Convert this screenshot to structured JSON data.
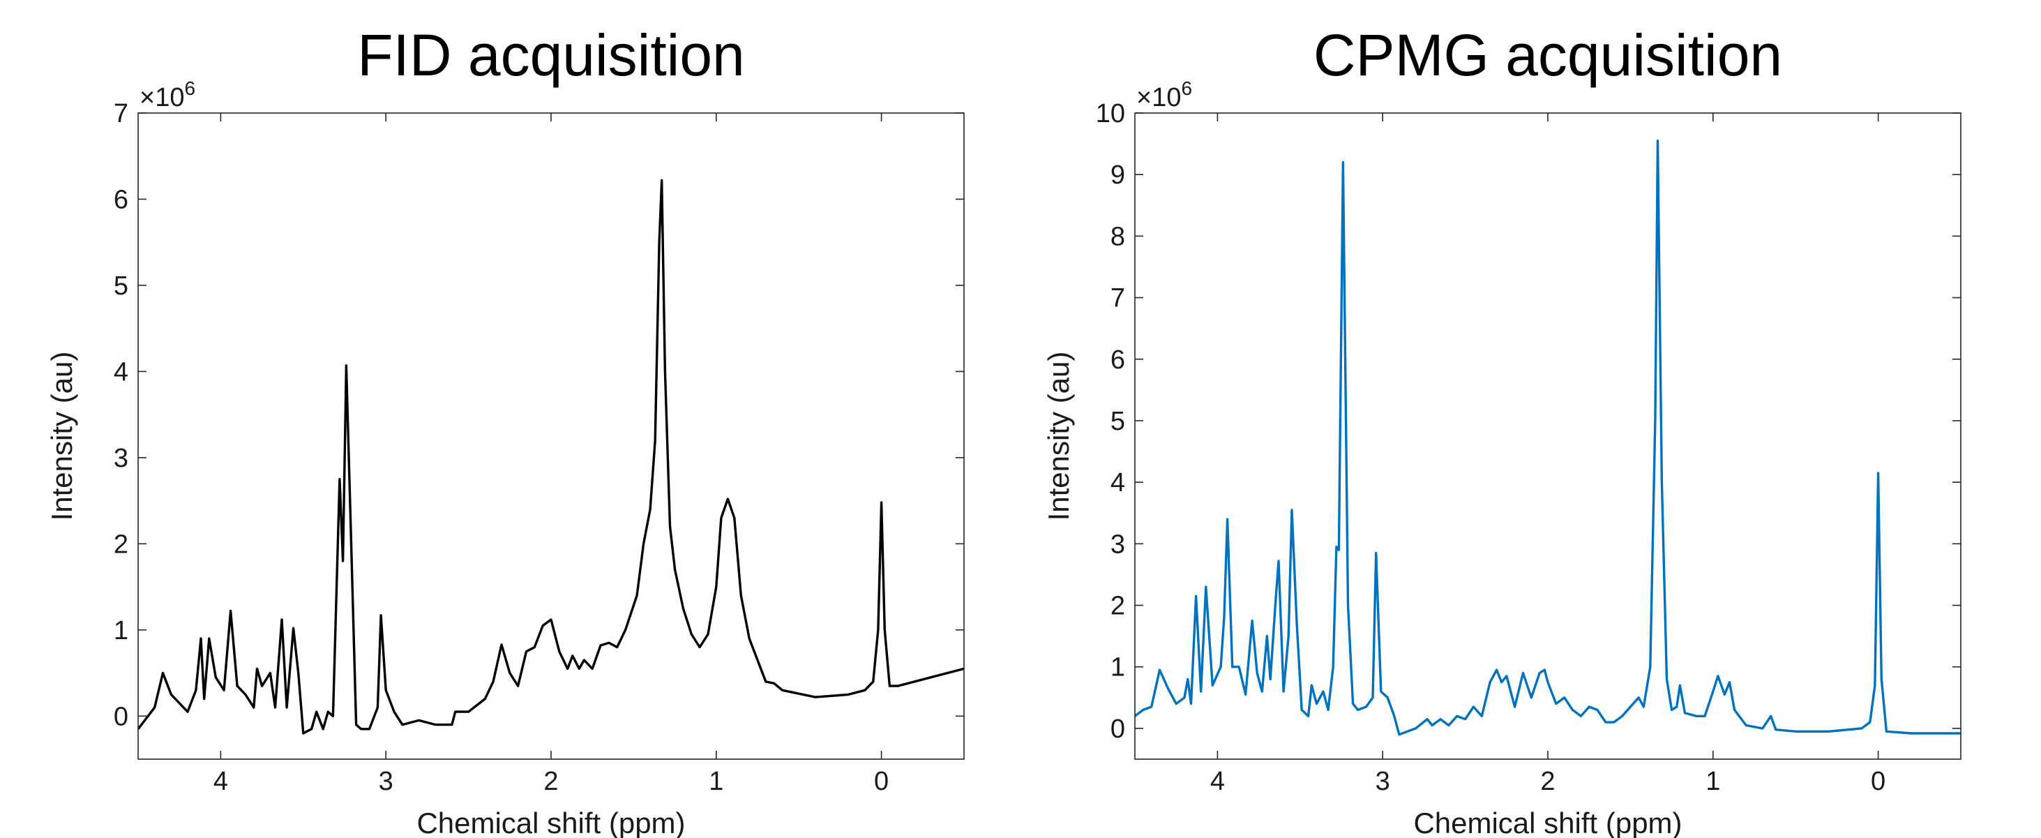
{
  "chart_data": [
    {
      "type": "line",
      "title": "FID acquisition",
      "x_label": "Chemical shift (ppm)",
      "y_label": "Intensity (au)",
      "y_multiplier": {
        "base": "×10",
        "exponent": "6"
      },
      "color": "#000000",
      "xlim": [
        4.5,
        -0.5
      ],
      "ylim": [
        -0.5,
        7
      ],
      "xticks": [
        4,
        3,
        2,
        1,
        0
      ],
      "yticks": [
        0,
        1,
        2,
        3,
        4,
        5,
        6,
        7
      ],
      "x": [
        4.5,
        4.4,
        4.35,
        4.3,
        4.2,
        4.15,
        4.12,
        4.1,
        4.07,
        4.03,
        3.98,
        3.94,
        3.9,
        3.85,
        3.8,
        3.78,
        3.75,
        3.7,
        3.67,
        3.63,
        3.6,
        3.56,
        3.53,
        3.5,
        3.45,
        3.42,
        3.38,
        3.35,
        3.32,
        3.28,
        3.26,
        3.24,
        3.21,
        3.18,
        3.15,
        3.1,
        3.05,
        3.03,
        3.0,
        2.95,
        2.9,
        2.8,
        2.7,
        2.6,
        2.58,
        2.5,
        2.4,
        2.35,
        2.3,
        2.25,
        2.2,
        2.15,
        2.1,
        2.05,
        2.0,
        1.95,
        1.9,
        1.87,
        1.83,
        1.8,
        1.75,
        1.7,
        1.65,
        1.6,
        1.55,
        1.48,
        1.44,
        1.4,
        1.37,
        1.345,
        1.33,
        1.31,
        1.28,
        1.25,
        1.2,
        1.15,
        1.1,
        1.05,
        1.0,
        0.97,
        0.93,
        0.89,
        0.85,
        0.8,
        0.7,
        0.65,
        0.6,
        0.4,
        0.2,
        0.1,
        0.05,
        0.02,
        0.0,
        -0.02,
        -0.05,
        -0.1,
        -0.3,
        -0.5
      ],
      "values": [
        -0.15,
        0.1,
        0.5,
        0.25,
        0.05,
        0.3,
        0.9,
        0.2,
        0.9,
        0.45,
        0.3,
        1.22,
        0.35,
        0.25,
        0.1,
        0.55,
        0.35,
        0.5,
        0.1,
        1.12,
        0.1,
        1.02,
        0.5,
        -0.2,
        -0.15,
        0.05,
        -0.15,
        0.05,
        0.0,
        2.75,
        1.8,
        4.07,
        2.0,
        -0.1,
        -0.15,
        -0.15,
        0.1,
        1.17,
        0.3,
        0.05,
        -0.1,
        -0.05,
        -0.1,
        -0.1,
        0.05,
        0.05,
        0.2,
        0.4,
        0.83,
        0.5,
        0.35,
        0.75,
        0.8,
        1.05,
        1.12,
        0.75,
        0.55,
        0.7,
        0.55,
        0.65,
        0.55,
        0.82,
        0.85,
        0.8,
        1.0,
        1.4,
        2.0,
        2.4,
        3.2,
        5.5,
        6.22,
        4.0,
        2.2,
        1.7,
        1.25,
        0.95,
        0.8,
        0.95,
        1.5,
        2.3,
        2.52,
        2.3,
        1.4,
        0.9,
        0.4,
        0.38,
        0.3,
        0.22,
        0.25,
        0.3,
        0.4,
        1.0,
        2.48,
        1.0,
        0.35,
        0.35,
        0.45,
        0.55
      ]
    },
    {
      "type": "line",
      "title": "CPMG acquisition",
      "x_label": "Chemical shift (ppm)",
      "y_label": "Intensity (au)",
      "y_multiplier": {
        "base": "×10",
        "exponent": "6"
      },
      "color": "#0072bd",
      "xlim": [
        4.5,
        -0.5
      ],
      "ylim": [
        -0.5,
        10
      ],
      "xticks": [
        4,
        3,
        2,
        1,
        0
      ],
      "yticks": [
        0,
        1,
        2,
        3,
        4,
        5,
        6,
        7,
        8,
        9,
        10
      ],
      "x": [
        4.5,
        4.45,
        4.4,
        4.35,
        4.3,
        4.25,
        4.2,
        4.18,
        4.16,
        4.13,
        4.1,
        4.07,
        4.03,
        3.98,
        3.96,
        3.94,
        3.91,
        3.87,
        3.83,
        3.79,
        3.76,
        3.73,
        3.7,
        3.68,
        3.65,
        3.63,
        3.6,
        3.57,
        3.55,
        3.52,
        3.49,
        3.45,
        3.43,
        3.4,
        3.36,
        3.33,
        3.3,
        3.28,
        3.265,
        3.24,
        3.21,
        3.18,
        3.15,
        3.1,
        3.06,
        3.04,
        3.01,
        2.97,
        2.93,
        2.9,
        2.8,
        2.73,
        2.7,
        2.65,
        2.6,
        2.55,
        2.5,
        2.45,
        2.4,
        2.35,
        2.31,
        2.28,
        2.25,
        2.2,
        2.15,
        2.1,
        2.05,
        2.02,
        2.0,
        1.95,
        1.9,
        1.85,
        1.8,
        1.75,
        1.7,
        1.65,
        1.6,
        1.55,
        1.5,
        1.45,
        1.42,
        1.38,
        1.35,
        1.335,
        1.31,
        1.28,
        1.25,
        1.22,
        1.2,
        1.17,
        1.1,
        1.05,
        1.0,
        0.97,
        0.93,
        0.9,
        0.87,
        0.8,
        0.7,
        0.65,
        0.62,
        0.5,
        0.3,
        0.1,
        0.05,
        0.02,
        0.0,
        -0.02,
        -0.05,
        -0.2,
        -0.5
      ],
      "values": [
        0.2,
        0.3,
        0.35,
        0.95,
        0.65,
        0.4,
        0.5,
        0.8,
        0.4,
        2.15,
        0.6,
        2.3,
        0.7,
        1.0,
        1.8,
        3.4,
        1.0,
        1.0,
        0.55,
        1.75,
        0.9,
        0.6,
        1.5,
        0.8,
        2.0,
        2.72,
        0.6,
        1.5,
        3.55,
        1.7,
        0.3,
        0.2,
        0.7,
        0.4,
        0.6,
        0.3,
        1.0,
        2.95,
        2.9,
        9.2,
        2.0,
        0.4,
        0.3,
        0.35,
        0.5,
        2.85,
        0.6,
        0.5,
        0.2,
        -0.1,
        0.0,
        0.15,
        0.05,
        0.15,
        0.05,
        0.2,
        0.15,
        0.35,
        0.2,
        0.75,
        0.95,
        0.75,
        0.85,
        0.35,
        0.9,
        0.5,
        0.9,
        0.95,
        0.75,
        0.4,
        0.5,
        0.3,
        0.2,
        0.35,
        0.3,
        0.1,
        0.1,
        0.2,
        0.35,
        0.5,
        0.35,
        1.0,
        5.0,
        9.55,
        4.0,
        0.8,
        0.3,
        0.35,
        0.7,
        0.25,
        0.2,
        0.2,
        0.6,
        0.85,
        0.55,
        0.75,
        0.3,
        0.05,
        0.0,
        0.2,
        -0.02,
        -0.05,
        -0.05,
        0.0,
        0.1,
        0.7,
        4.15,
        0.8,
        -0.05,
        -0.08,
        -0.08
      ]
    }
  ]
}
